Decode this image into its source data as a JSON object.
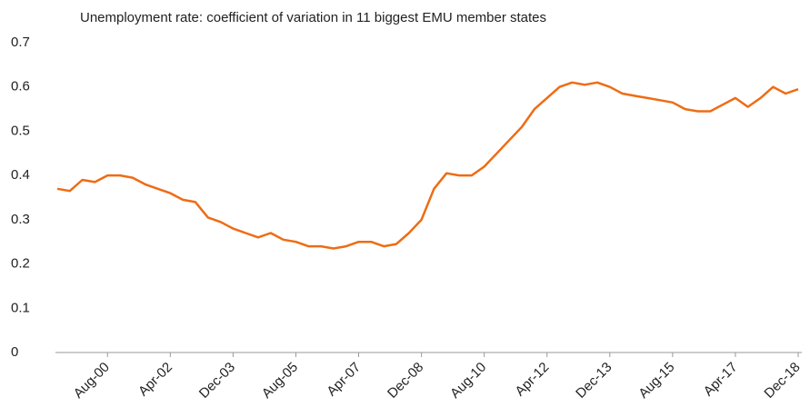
{
  "chart_data": {
    "type": "line",
    "title": "Unemployment rate: coefficient of variation in 11 biggest EMU member states",
    "categories": [
      null,
      null,
      null,
      null,
      "Aug-00",
      null,
      null,
      null,
      null,
      "Apr-02",
      null,
      null,
      null,
      null,
      "Dec-03",
      null,
      null,
      null,
      null,
      "Aug-05",
      null,
      null,
      null,
      null,
      "Apr-07",
      null,
      null,
      null,
      null,
      "Dec-08",
      null,
      null,
      null,
      null,
      "Aug-10",
      null,
      null,
      null,
      null,
      "Apr-12",
      null,
      null,
      null,
      null,
      "Dec-13",
      null,
      null,
      null,
      null,
      "Aug-15",
      null,
      null,
      null,
      null,
      "Apr-17",
      null,
      null,
      null,
      null,
      "Dec-18"
    ],
    "series": [
      {
        "name": "Coefficient of variation",
        "color": "#ee6c14",
        "values": [
          0.37,
          0.365,
          0.39,
          0.385,
          0.4,
          0.4,
          0.395,
          0.38,
          0.37,
          0.36,
          0.345,
          0.34,
          0.305,
          0.295,
          0.28,
          0.27,
          0.26,
          0.27,
          0.255,
          0.25,
          0.24,
          0.24,
          0.235,
          0.24,
          0.25,
          0.25,
          0.24,
          0.245,
          0.27,
          0.3,
          0.37,
          0.405,
          0.4,
          0.4,
          0.42,
          0.45,
          0.48,
          0.51,
          0.55,
          0.575,
          0.6,
          0.61,
          0.605,
          0.61,
          0.6,
          0.585,
          0.58,
          0.575,
          0.57,
          0.565,
          0.55,
          0.545,
          0.545,
          0.56,
          0.575,
          0.555,
          0.575,
          0.6,
          0.585,
          0.595
        ]
      }
    ],
    "ylim": [
      0,
      0.7
    ],
    "yticks": [
      0,
      0.1,
      0.2,
      0.3,
      0.4,
      0.5,
      0.6,
      0.7
    ],
    "grid": false,
    "legend": false
  }
}
